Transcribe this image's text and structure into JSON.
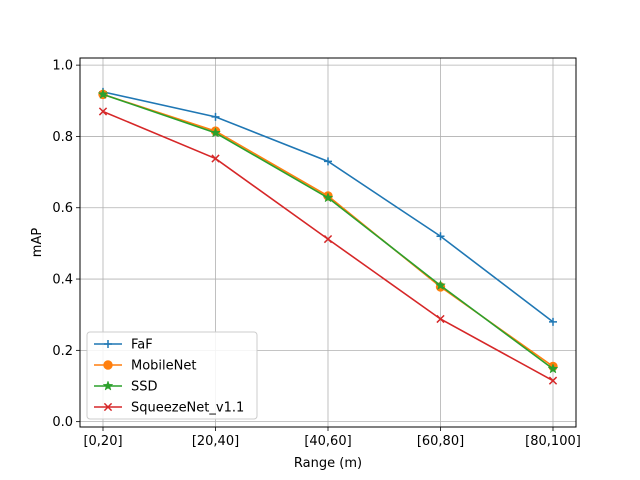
{
  "chart_data": {
    "type": "line",
    "title": "",
    "xlabel": "Range (m)",
    "ylabel": "mAP",
    "categories": [
      "[0,20]",
      "[20,40]",
      "[40,60]",
      "[60,80]",
      "[80,100]"
    ],
    "ylim": [
      -0.015,
      1.02
    ],
    "yticks": [
      0.0,
      0.2,
      0.4,
      0.6,
      0.8,
      1.0
    ],
    "ytick_labels": [
      "0.0",
      "0.2",
      "0.4",
      "0.6",
      "0.8",
      "1.0"
    ],
    "grid": true,
    "legend_position": "lower-left",
    "series": [
      {
        "name": "FaF",
        "color": "#1f77b4",
        "marker": "plus",
        "values": [
          0.925,
          0.855,
          0.73,
          0.52,
          0.28
        ]
      },
      {
        "name": "MobileNet",
        "color": "#ff7f0e",
        "marker": "circle",
        "values": [
          0.918,
          0.815,
          0.633,
          0.378,
          0.155
        ]
      },
      {
        "name": "SSD",
        "color": "#2ca02c",
        "marker": "star",
        "values": [
          0.918,
          0.81,
          0.628,
          0.382,
          0.148
        ]
      },
      {
        "name": "SqueezeNet_v1.1",
        "color": "#d62728",
        "marker": "x",
        "values": [
          0.87,
          0.738,
          0.512,
          0.288,
          0.115
        ]
      }
    ]
  }
}
